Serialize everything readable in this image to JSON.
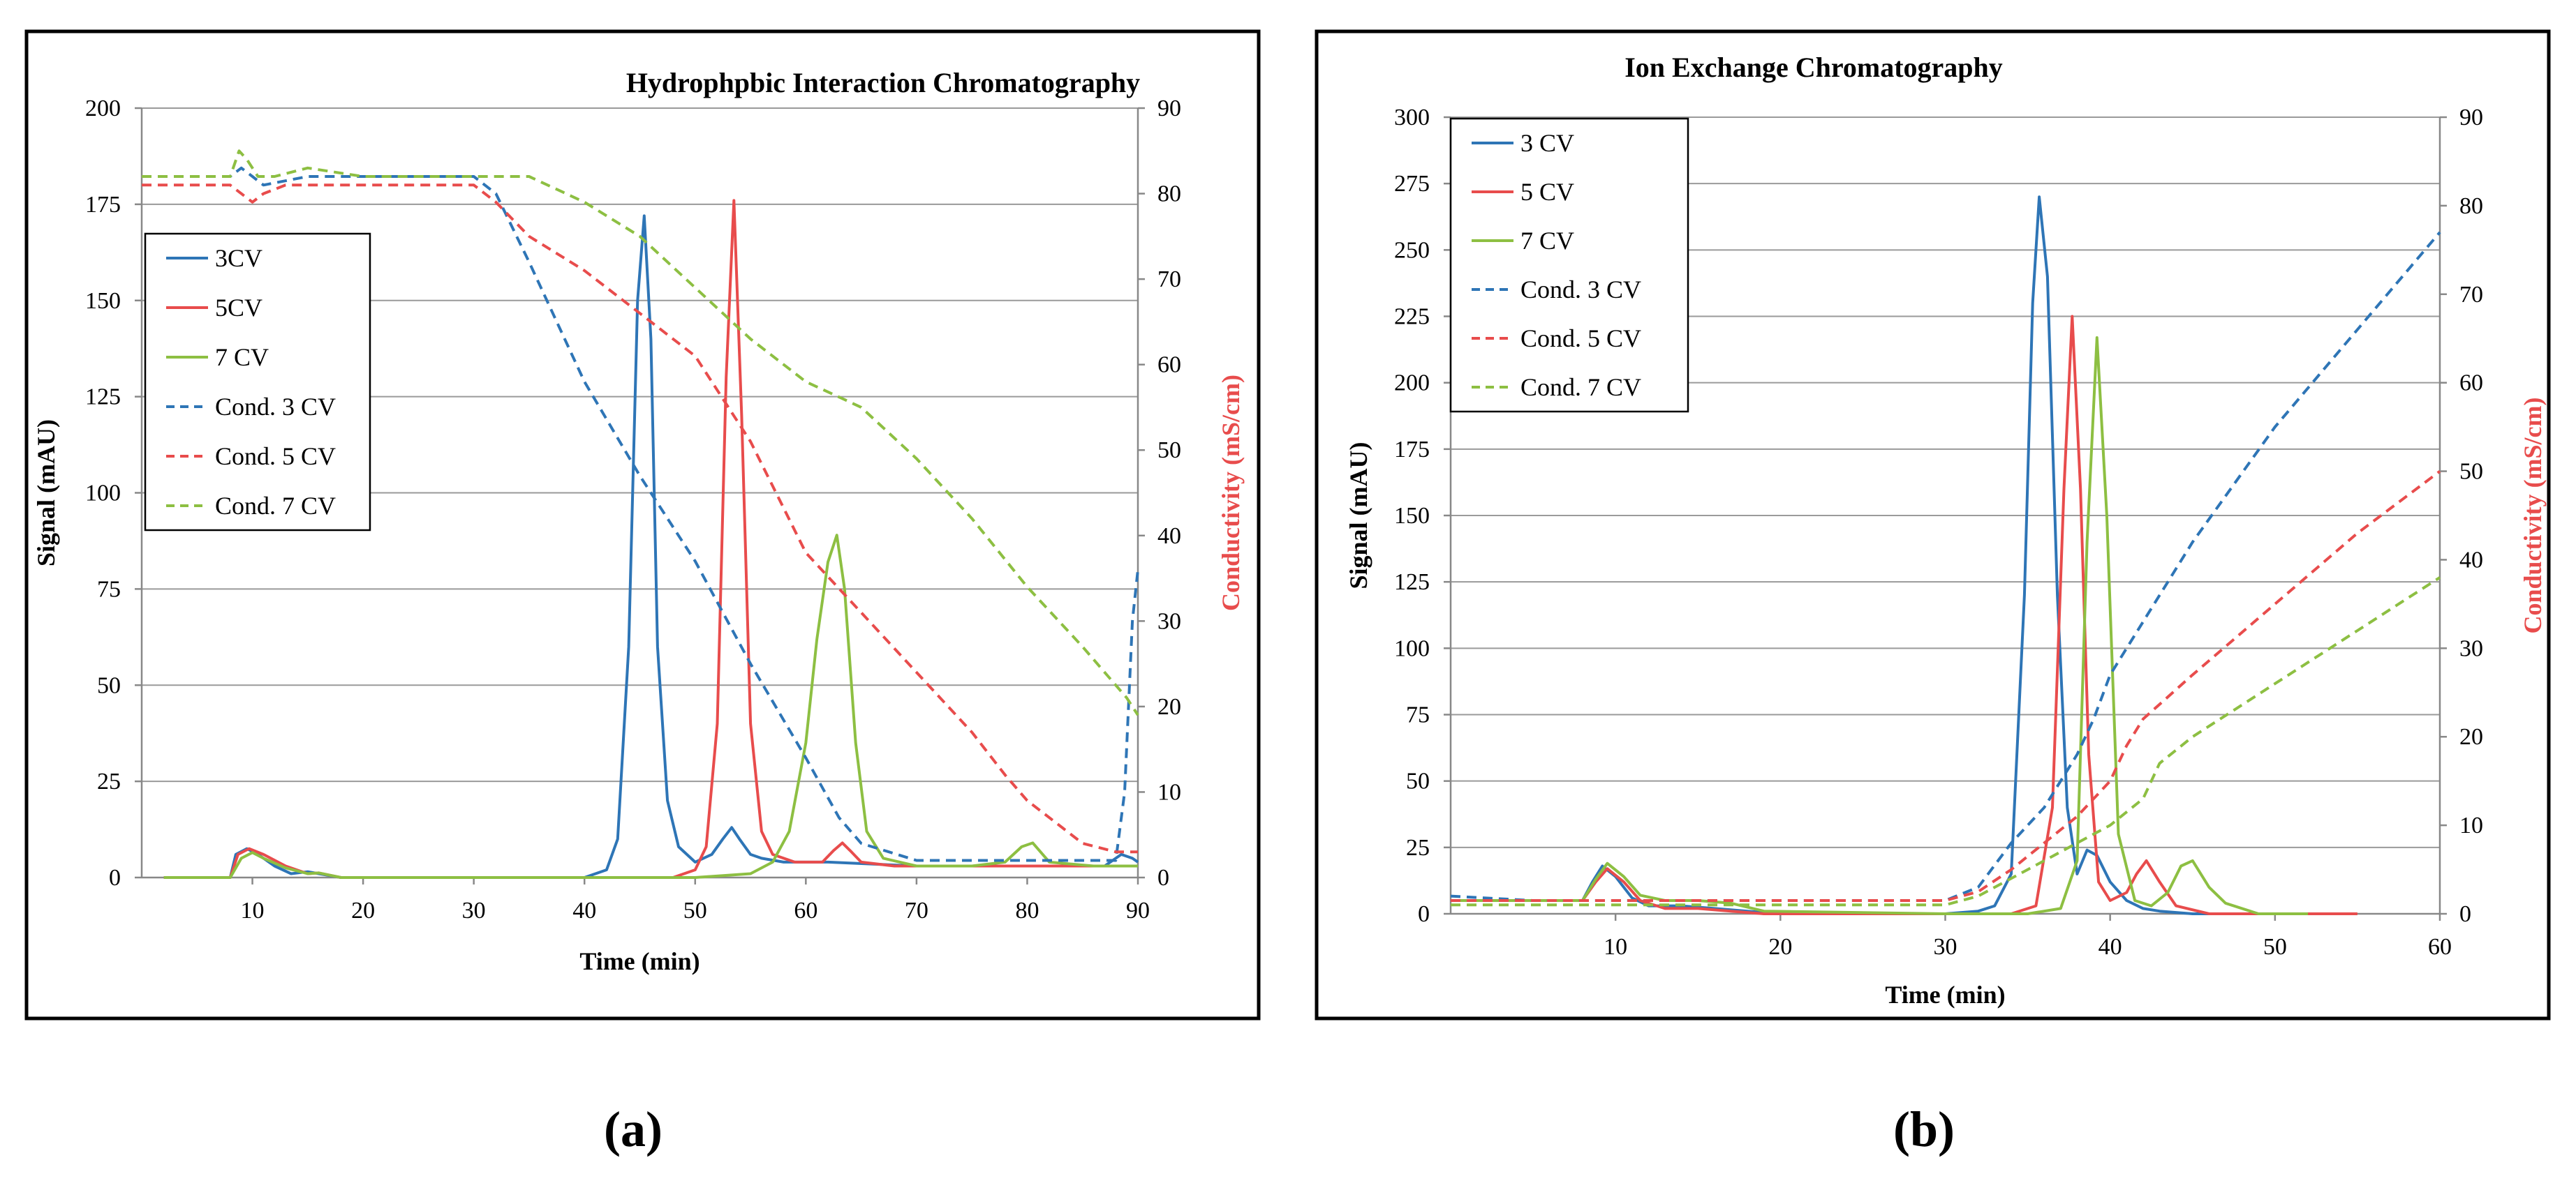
{
  "chart_data": [
    {
      "type": "line",
      "title": "Hydrophpbic Interaction Chromatography",
      "xlabel": "Time (min)",
      "ylabel": "Signal (mAU)",
      "y2label": "Conductivity (mS/cm)",
      "xlim": [
        0,
        90
      ],
      "ylim": [
        0,
        200
      ],
      "y2lim": [
        0,
        90
      ],
      "xticks": [
        10,
        20,
        30,
        40,
        50,
        60,
        70,
        80,
        90
      ],
      "yticks": [
        0,
        25,
        50,
        75,
        100,
        125,
        150,
        175,
        200
      ],
      "y2ticks": [
        0,
        10,
        20,
        30,
        40,
        50,
        60,
        70,
        80,
        90
      ],
      "grid": true,
      "legend_position": "left",
      "panel_label": "(a)",
      "series": [
        {
          "name": "3CV",
          "axis": "left",
          "style": "solid",
          "color": "#2e75b6",
          "x": [
            2,
            8,
            8.5,
            9.5,
            10.5,
            12,
            13.5,
            15,
            16,
            18,
            30,
            40,
            42,
            43,
            44,
            44.8,
            45.4,
            46,
            46.6,
            47.5,
            48.5,
            50,
            51.5,
            52.5,
            53.3,
            54,
            55,
            56,
            58,
            62,
            70,
            80,
            87,
            88.5,
            89.5,
            90
          ],
          "y": [
            0,
            0,
            6,
            7.5,
            6,
            3,
            1,
            1.5,
            1,
            0,
            0,
            0,
            2,
            10,
            60,
            150,
            172,
            140,
            60,
            20,
            8,
            4,
            6,
            10,
            13,
            10,
            6,
            5,
            4,
            4,
            3,
            3,
            3,
            6,
            5,
            4
          ]
        },
        {
          "name": "5CV",
          "axis": "left",
          "style": "solid",
          "color": "#e84c4c",
          "x": [
            2,
            8,
            8.7,
            9.7,
            11,
            13,
            15,
            16,
            18,
            25,
            40,
            48,
            50,
            51,
            52,
            52.8,
            53.5,
            54.2,
            55,
            56,
            57,
            59,
            61.5,
            62.5,
            63.3,
            64,
            65,
            68,
            80,
            90
          ],
          "y": [
            0,
            0,
            6,
            7.5,
            6,
            3,
            1,
            1.2,
            0,
            0,
            0,
            0,
            2,
            8,
            40,
            130,
            176,
            120,
            40,
            12,
            6,
            4,
            4,
            7,
            9,
            7,
            4,
            3,
            3,
            3
          ]
        },
        {
          "name": "7 CV",
          "axis": "left",
          "style": "solid",
          "color": "#8dbf42",
          "x": [
            2,
            8,
            9,
            10,
            11,
            13,
            15,
            16,
            18,
            25,
            50,
            55,
            57,
            58.5,
            60,
            61,
            62,
            62.8,
            63.5,
            64.5,
            65.5,
            67,
            70,
            75,
            78,
            79.5,
            80.5,
            82,
            86,
            90
          ],
          "y": [
            0,
            0,
            5,
            6.5,
            5,
            2.5,
            1,
            1.2,
            0,
            0,
            0,
            1,
            4,
            12,
            35,
            62,
            82,
            89,
            75,
            35,
            12,
            5,
            3,
            3,
            4,
            8,
            9,
            4,
            3,
            3
          ]
        },
        {
          "name": "Cond. 3 CV",
          "axis": "right",
          "style": "dashed",
          "color": "#2e75b6",
          "x": [
            0,
            8,
            9,
            10,
            11,
            15,
            25,
            30,
            32,
            35,
            40,
            45,
            50,
            55,
            60,
            63,
            65,
            70,
            80,
            88,
            88.8,
            89.5,
            90
          ],
          "y": [
            82,
            82,
            83,
            82,
            81,
            82,
            82,
            82,
            80,
            72,
            58,
            47,
            37,
            25,
            14,
            7,
            4,
            2,
            2,
            2,
            10,
            30,
            36
          ]
        },
        {
          "name": "Cond. 5 CV",
          "axis": "right",
          "style": "dashed",
          "color": "#e84c4c",
          "x": [
            0,
            8,
            9,
            10,
            11,
            13,
            15,
            25,
            30,
            32,
            35,
            40,
            45,
            50,
            55,
            60,
            65,
            70,
            75,
            78,
            80,
            82,
            85,
            88,
            90
          ],
          "y": [
            81,
            81,
            80,
            79,
            80,
            81,
            81,
            81,
            81,
            79,
            75,
            71,
            66,
            61,
            51,
            38,
            31,
            24,
            17,
            12,
            9,
            7,
            4,
            3,
            3
          ]
        },
        {
          "name": "Cond. 7 CV",
          "axis": "right",
          "style": "dashed",
          "color": "#8dbf42",
          "x": [
            0,
            8,
            8.8,
            9.5,
            10.5,
            12,
            15,
            20,
            25,
            30,
            35,
            40,
            45,
            50,
            55,
            60,
            65,
            70,
            75,
            80,
            85,
            89,
            90
          ],
          "y": [
            82,
            82,
            85,
            84,
            82,
            82,
            83,
            82,
            82,
            82,
            82,
            79,
            75,
            69,
            63,
            58,
            55,
            49,
            42,
            34,
            27,
            21,
            19
          ]
        }
      ]
    },
    {
      "type": "line",
      "title": "Ion Exchange Chromatography",
      "xlabel": "Time (min)",
      "ylabel": "Signal (mAU)",
      "y2label": "Conductivity (mS/cm)",
      "xlim": [
        0,
        60
      ],
      "ylim": [
        0,
        300
      ],
      "y2lim": [
        0,
        90
      ],
      "xticks": [
        10,
        20,
        30,
        40,
        50,
        60
      ],
      "yticks": [
        0,
        25,
        50,
        75,
        100,
        125,
        150,
        175,
        200,
        225,
        250,
        275,
        300
      ],
      "y2ticks": [
        0,
        10,
        20,
        30,
        40,
        50,
        60,
        70,
        80,
        90
      ],
      "grid": true,
      "legend_position": "top-left",
      "panel_label": "(b)",
      "series": [
        {
          "name": "3 CV",
          "axis": "left",
          "style": "solid",
          "color": "#2e75b6",
          "x": [
            0,
            8,
            8.6,
            9.2,
            10,
            11,
            12,
            14,
            16,
            18,
            20,
            30,
            32,
            33,
            34,
            34.8,
            35.3,
            35.7,
            36.2,
            36.8,
            37.4,
            38,
            38.6,
            39.2,
            40,
            41,
            42,
            43,
            45,
            50
          ],
          "y": [
            5,
            5,
            12,
            18,
            14,
            6,
            3,
            3,
            2,
            1,
            0,
            0,
            1,
            3,
            15,
            120,
            230,
            270,
            240,
            120,
            40,
            15,
            24,
            22,
            12,
            5,
            2,
            1,
            0,
            0
          ]
        },
        {
          "name": "5 CV",
          "axis": "left",
          "style": "solid",
          "color": "#e84c4c",
          "x": [
            0,
            8,
            8.8,
            9.5,
            10.5,
            11.5,
            13,
            15,
            17,
            19,
            30,
            34,
            35.5,
            36.5,
            37.2,
            37.7,
            38.2,
            38.7,
            39.3,
            40,
            41,
            41.6,
            42.2,
            43,
            44,
            46,
            50,
            55
          ],
          "y": [
            5,
            5,
            12,
            17,
            12,
            5,
            2,
            2,
            1,
            0,
            0,
            0,
            3,
            40,
            160,
            225,
            160,
            60,
            12,
            5,
            8,
            15,
            20,
            12,
            3,
            0,
            0,
            0
          ]
        },
        {
          "name": "7 CV",
          "axis": "left",
          "style": "solid",
          "color": "#8dbf42",
          "x": [
            0,
            8,
            8.8,
            9.5,
            10.5,
            11.5,
            13,
            15,
            17,
            19,
            30,
            35,
            37,
            38,
            38.6,
            39.2,
            39.8,
            40.5,
            41.5,
            42.5,
            43.5,
            44.3,
            45,
            46,
            47,
            49,
            52
          ],
          "y": [
            5,
            5,
            13,
            19,
            14,
            7,
            5,
            5,
            4,
            1,
            0,
            0,
            2,
            20,
            140,
            217,
            150,
            30,
            5,
            3,
            8,
            18,
            20,
            10,
            4,
            0,
            0
          ]
        },
        {
          "name": "Cond. 3 CV",
          "axis": "right",
          "style": "dashed",
          "color": "#2e75b6",
          "x": [
            0,
            5,
            10,
            20,
            30,
            32,
            34,
            36,
            38,
            39,
            40,
            42,
            45,
            50,
            55,
            60
          ],
          "y": [
            2,
            1.5,
            1.5,
            1.5,
            1.5,
            3,
            8,
            12,
            18,
            22,
            27,
            33,
            42,
            55,
            66,
            77
          ]
        },
        {
          "name": "Cond. 5 CV",
          "axis": "right",
          "style": "dashed",
          "color": "#e84c4c",
          "x": [
            0,
            5,
            10,
            20,
            30,
            32,
            34,
            36,
            38,
            40,
            41,
            42,
            45,
            50,
            55,
            60
          ],
          "y": [
            1.5,
            1.5,
            1.5,
            1.5,
            1.5,
            2.5,
            5,
            8,
            11,
            15,
            19,
            22,
            27,
            35,
            43,
            50
          ]
        },
        {
          "name": "Cond. 7 CV",
          "axis": "right",
          "style": "dashed",
          "color": "#8dbf42",
          "x": [
            0,
            5,
            10,
            20,
            30,
            32,
            35,
            38,
            40,
            42,
            43,
            45,
            50,
            55,
            60
          ],
          "y": [
            1,
            1,
            1,
            1,
            1,
            2,
            5,
            8,
            10,
            13,
            17,
            20,
            26,
            32,
            38
          ]
        }
      ]
    }
  ]
}
